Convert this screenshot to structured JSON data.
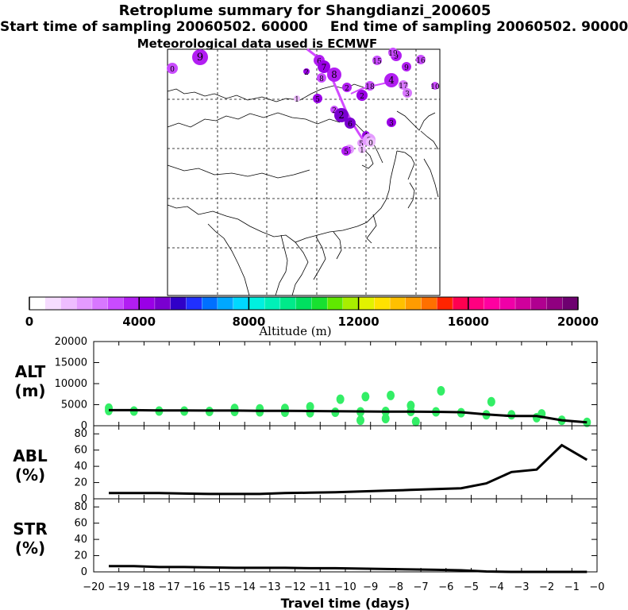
{
  "title": "Retroplume summary for Shangdianzi_200605",
  "start_label": "Start time of sampling 20060502. 60000",
  "end_label": "End time of sampling 20060502. 90000",
  "met_label": "Meteorological data used is ECMWF",
  "colors": {
    "plume_line": "#d24bff",
    "scatter": "#33ee66",
    "line": "#000000"
  },
  "colorbar": {
    "label": "Altitude (m)",
    "ticks": [
      "0",
      "4000",
      "8000",
      "12000",
      "16000",
      "20000"
    ],
    "colors": [
      "#ffffff",
      "#f6dcff",
      "#eebdff",
      "#e49bff",
      "#d877ff",
      "#c94bff",
      "#b21ef2",
      "#9a00e6",
      "#7a00d0",
      "#3000c8",
      "#2030ff",
      "#0070ff",
      "#00a8ff",
      "#00d8ff",
      "#00f0e0",
      "#00f0b8",
      "#00ea8a",
      "#00e060",
      "#18e030",
      "#60e800",
      "#a8ee00",
      "#e2f200",
      "#ffe100",
      "#ffc000",
      "#ff9c00",
      "#ff7000",
      "#ff2400",
      "#ff0050",
      "#ff0080",
      "#ff00a0",
      "#f000a8",
      "#d0009c",
      "#b00090",
      "#900080",
      "#6e0070"
    ]
  },
  "plume_labels": [
    {
      "t": "0",
      "c": "#c94bff"
    },
    {
      "t": "9",
      "c": "#b21ef2"
    },
    {
      "t": "6",
      "c": "#b21ef2"
    },
    {
      "t": "7",
      "c": "#9a00e6"
    },
    {
      "t": "8",
      "c": "#b21ef2"
    },
    {
      "t": "2",
      "c": "#9a00e6"
    },
    {
      "t": "9",
      "c": "#b21ef2"
    },
    {
      "t": "8",
      "c": "#c94bff"
    },
    {
      "t": "19",
      "c": "#c94bff"
    },
    {
      "t": "9",
      "c": "#b21ef2"
    },
    {
      "t": "15",
      "c": "#c94bff"
    },
    {
      "t": "16",
      "c": "#c94bff"
    },
    {
      "t": "10",
      "c": "#c94bff"
    },
    {
      "t": "4",
      "c": "#b21ef2"
    },
    {
      "t": "17",
      "c": "#d877ff"
    },
    {
      "t": "3",
      "c": "#d877ff"
    },
    {
      "t": "18",
      "c": "#c94bff"
    },
    {
      "t": "2",
      "c": "#b21ef2"
    },
    {
      "t": "5",
      "c": "#9a00e6"
    },
    {
      "t": "2",
      "c": "#9a00e6"
    },
    {
      "t": "2",
      "c": "#c94bff"
    },
    {
      "t": "3",
      "c": "#9a00e6"
    },
    {
      "t": "2",
      "c": "#7a00d0"
    },
    {
      "t": "6",
      "c": "#7a00d0"
    },
    {
      "t": "4",
      "c": "#9a00e6"
    },
    {
      "t": "3",
      "c": "#e49bff"
    },
    {
      "t": "5",
      "c": "#e49bff"
    },
    {
      "t": "4",
      "c": "#e49bff"
    },
    {
      "t": "1",
      "c": "#eebdff"
    },
    {
      "t": "5",
      "c": "#b21ef2"
    },
    {
      "t": "0",
      "c": "#eebdff"
    },
    {
      "t": "1",
      "c": "#eebdff"
    }
  ],
  "chart_data": [
    {
      "type": "scatter",
      "panel_label": "ALT\n(m)",
      "label_lines": [
        "ALT",
        "(m)"
      ],
      "xlim": [
        -20,
        0
      ],
      "ylim": [
        0,
        20000
      ],
      "yticks": [
        "0",
        "5000",
        "10000",
        "15000",
        "20000"
      ],
      "series": [
        {
          "name": "mean altitude",
          "x": [
            -19.4,
            -18.4,
            -17.4,
            -16.4,
            -15.4,
            -14.4,
            -13.4,
            -12.4,
            -11.4,
            -10.4,
            -9.4,
            -8.4,
            -7.4,
            -6.4,
            -5.4,
            -4.4,
            -3.4,
            -2.4,
            -1.4,
            -0.4
          ],
          "values": [
            3700,
            3700,
            3650,
            3650,
            3600,
            3600,
            3550,
            3550,
            3500,
            3450,
            3400,
            3350,
            3350,
            3300,
            3200,
            2700,
            2300,
            2300,
            1300,
            800
          ]
        },
        {
          "name": "particle altitude",
          "x": [
            -19.4,
            -19.4,
            -18.4,
            -17.4,
            -16.4,
            -15.4,
            -14.4,
            -14.4,
            -13.4,
            -13.4,
            -12.4,
            -12.4,
            -11.4,
            -11.4,
            -10.4,
            -10.2,
            -9.4,
            -9.4,
            -9.2,
            -8.4,
            -8.4,
            -8.2,
            -7.4,
            -7.4,
            -7.2,
            -6.4,
            -6.2,
            -5.4,
            -4.4,
            -4.2,
            -3.4,
            -2.4,
            -2.2,
            -1.4,
            -0.4
          ],
          "values": [
            3600,
            4200,
            3500,
            3500,
            3500,
            3400,
            3400,
            4100,
            3300,
            4000,
            3200,
            4100,
            3100,
            4500,
            3200,
            6300,
            3300,
            1300,
            6900,
            3400,
            1700,
            7200,
            3400,
            4800,
            1000,
            3300,
            8300,
            3100,
            2600,
            5700,
            2600,
            1900,
            2800,
            1300,
            800
          ]
        }
      ]
    },
    {
      "type": "line",
      "panel_label": "ABL\n(%)",
      "label_lines": [
        "ABL",
        "(%)"
      ],
      "xlim": [
        -20,
        0
      ],
      "ylim": [
        0,
        90
      ],
      "yticks": [
        "0",
        "20",
        "40",
        "60",
        "80"
      ],
      "series": [
        {
          "name": "ABL",
          "x": [
            -19.4,
            -18.4,
            -17.4,
            -16.4,
            -15.4,
            -14.4,
            -13.4,
            -12.4,
            -11.4,
            -10.4,
            -9.4,
            -8.4,
            -7.4,
            -6.4,
            -5.4,
            -4.4,
            -3.4,
            -2.4,
            -1.4,
            -0.4
          ],
          "values": [
            7,
            7,
            7,
            6.5,
            6,
            6,
            6,
            7,
            7.5,
            8,
            9,
            10,
            11,
            12,
            13,
            19,
            33,
            36,
            66,
            48
          ]
        }
      ]
    },
    {
      "type": "line",
      "panel_label": "STR\n(%)",
      "label_lines": [
        "STR",
        "(%)"
      ],
      "xlim": [
        -20,
        0
      ],
      "ylim": [
        0,
        90
      ],
      "yticks": [
        "0",
        "20",
        "40",
        "60",
        "80"
      ],
      "xticks": [
        "−20",
        "−19",
        "−18",
        "−17",
        "−16",
        "−15",
        "−14",
        "−13",
        "−12",
        "−11",
        "−10",
        "−9",
        "−8",
        "−7",
        "−6",
        "−5",
        "−4",
        "−3",
        "−2",
        "−1",
        "−0"
      ],
      "xlabel": "Travel time (days)",
      "series": [
        {
          "name": "STR",
          "x": [
            -19.4,
            -18.4,
            -17.4,
            -16.4,
            -15.4,
            -14.4,
            -13.4,
            -12.4,
            -11.4,
            -10.4,
            -9.4,
            -8.4,
            -7.4,
            -6.4,
            -5.4,
            -4.4,
            -3.4,
            -2.4,
            -1.4,
            -0.4
          ],
          "values": [
            7,
            7,
            6,
            6,
            5.5,
            5,
            5,
            5,
            4.5,
            4.5,
            4,
            3.5,
            3,
            2.5,
            2,
            0.5,
            0,
            0,
            0,
            0
          ]
        }
      ]
    }
  ]
}
